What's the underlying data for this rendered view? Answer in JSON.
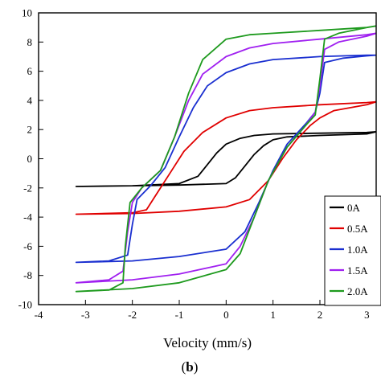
{
  "chart_data": {
    "type": "line",
    "xlabel": "Velocity (mm/s)",
    "ylabel": "",
    "xlim": [
      -4,
      3.2
    ],
    "ylim": [
      -10,
      10
    ],
    "xticks": [
      -4,
      -3,
      -2,
      -1,
      0,
      1,
      2,
      3
    ],
    "yticks": [
      -10,
      -8,
      -6,
      -4,
      -2,
      0,
      2,
      4,
      6,
      8,
      10
    ],
    "grid": false,
    "legend_position": "bottom-right",
    "caption": {
      "open": "(",
      "label": "b",
      "close": ")"
    },
    "series": [
      {
        "name": "0A",
        "color": "#000000",
        "upper": [
          [
            -3.2,
            -1.9
          ],
          [
            -2,
            -1.85
          ],
          [
            -1,
            -1.7
          ],
          [
            -0.6,
            -1.2
          ],
          [
            -0.4,
            -0.4
          ],
          [
            -0.2,
            0.4
          ],
          [
            0,
            1.0
          ],
          [
            0.3,
            1.4
          ],
          [
            0.6,
            1.6
          ],
          [
            1,
            1.7
          ],
          [
            2,
            1.75
          ],
          [
            3,
            1.8
          ],
          [
            3.2,
            1.85
          ]
        ],
        "lower": [
          [
            -3.2,
            -1.9
          ],
          [
            -2,
            -1.85
          ],
          [
            -1,
            -1.8
          ],
          [
            0,
            -1.7
          ],
          [
            0.2,
            -1.3
          ],
          [
            0.4,
            -0.5
          ],
          [
            0.6,
            0.3
          ],
          [
            0.8,
            0.9
          ],
          [
            1,
            1.3
          ],
          [
            1.3,
            1.5
          ],
          [
            2,
            1.6
          ],
          [
            3,
            1.7
          ],
          [
            3.2,
            1.85
          ]
        ]
      },
      {
        "name": "0.5A",
        "color": "#e00000",
        "upper": [
          [
            -3.2,
            -3.8
          ],
          [
            -2,
            -3.7
          ],
          [
            -1.7,
            -3.5
          ],
          [
            -1.5,
            -2.5
          ],
          [
            -1.2,
            -1.0
          ],
          [
            -0.9,
            0.5
          ],
          [
            -0.5,
            1.8
          ],
          [
            0,
            2.8
          ],
          [
            0.5,
            3.3
          ],
          [
            1,
            3.5
          ],
          [
            2,
            3.7
          ],
          [
            3,
            3.85
          ],
          [
            3.2,
            3.9
          ]
        ],
        "lower": [
          [
            -3.2,
            -3.8
          ],
          [
            -2,
            -3.75
          ],
          [
            -1,
            -3.6
          ],
          [
            0,
            -3.3
          ],
          [
            0.5,
            -2.8
          ],
          [
            0.9,
            -1.5
          ],
          [
            1.2,
            0
          ],
          [
            1.5,
            1.3
          ],
          [
            1.8,
            2.3
          ],
          [
            2,
            2.8
          ],
          [
            2.3,
            3.3
          ],
          [
            3,
            3.7
          ],
          [
            3.2,
            3.9
          ]
        ]
      },
      {
        "name": "1.0A",
        "color": "#1a2fd0",
        "upper": [
          [
            -3.2,
            -7.1
          ],
          [
            -2.5,
            -7.0
          ],
          [
            -2.1,
            -6.6
          ],
          [
            -2.0,
            -4.5
          ],
          [
            -1.9,
            -2.8
          ],
          [
            -1.6,
            -1.8
          ],
          [
            -1.3,
            -0.6
          ],
          [
            -1,
            1.5
          ],
          [
            -0.7,
            3.5
          ],
          [
            -0.4,
            5.0
          ],
          [
            0,
            5.9
          ],
          [
            0.5,
            6.5
          ],
          [
            1,
            6.8
          ],
          [
            2,
            7.0
          ],
          [
            3,
            7.1
          ],
          [
            3.2,
            7.1
          ]
        ],
        "lower": [
          [
            -3.2,
            -7.1
          ],
          [
            -2,
            -7.0
          ],
          [
            -1,
            -6.7
          ],
          [
            0,
            -6.2
          ],
          [
            0.4,
            -5.0
          ],
          [
            0.7,
            -3.0
          ],
          [
            1,
            -0.8
          ],
          [
            1.3,
            1.0
          ],
          [
            1.7,
            2.4
          ],
          [
            1.9,
            3.2
          ],
          [
            2.0,
            4.5
          ],
          [
            2.1,
            6.6
          ],
          [
            2.5,
            6.9
          ],
          [
            3,
            7.05
          ],
          [
            3.2,
            7.1
          ]
        ]
      },
      {
        "name": "1.5A",
        "color": "#a020f0",
        "upper": [
          [
            -3.2,
            -8.5
          ],
          [
            -2.5,
            -8.3
          ],
          [
            -2.2,
            -7.7
          ],
          [
            -2.1,
            -5.0
          ],
          [
            -2.0,
            -3.0
          ],
          [
            -1.8,
            -2.0
          ],
          [
            -1.4,
            -0.8
          ],
          [
            -1.1,
            1.5
          ],
          [
            -0.8,
            4.0
          ],
          [
            -0.5,
            5.8
          ],
          [
            0,
            7.0
          ],
          [
            0.5,
            7.6
          ],
          [
            1,
            7.9
          ],
          [
            2,
            8.2
          ],
          [
            3,
            8.5
          ],
          [
            3.2,
            8.6
          ]
        ],
        "lower": [
          [
            -3.2,
            -8.5
          ],
          [
            -2,
            -8.3
          ],
          [
            -1,
            -7.9
          ],
          [
            0,
            -7.2
          ],
          [
            0.3,
            -6.0
          ],
          [
            0.6,
            -4.0
          ],
          [
            0.9,
            -1.5
          ],
          [
            1.3,
            0.8
          ],
          [
            1.7,
            2.3
          ],
          [
            1.9,
            3.2
          ],
          [
            2.0,
            5.0
          ],
          [
            2.1,
            7.5
          ],
          [
            2.4,
            8.0
          ],
          [
            3,
            8.4
          ],
          [
            3.2,
            8.6
          ]
        ]
      },
      {
        "name": "2.0A",
        "color": "#1e9a1e",
        "upper": [
          [
            -3.2,
            -9.1
          ],
          [
            -2.5,
            -9.0
          ],
          [
            -2.2,
            -8.5
          ],
          [
            -2.15,
            -6.0
          ],
          [
            -2.05,
            -3.0
          ],
          [
            -1.8,
            -2.0
          ],
          [
            -1.4,
            -0.8
          ],
          [
            -1.1,
            1.5
          ],
          [
            -0.8,
            4.5
          ],
          [
            -0.5,
            6.8
          ],
          [
            0,
            8.2
          ],
          [
            0.5,
            8.5
          ],
          [
            1,
            8.6
          ],
          [
            2,
            8.8
          ],
          [
            3,
            9.0
          ],
          [
            3.2,
            9.1
          ]
        ],
        "lower": [
          [
            -3.2,
            -9.1
          ],
          [
            -2,
            -8.9
          ],
          [
            -1,
            -8.5
          ],
          [
            0,
            -7.6
          ],
          [
            0.3,
            -6.5
          ],
          [
            0.6,
            -4.0
          ],
          [
            0.9,
            -1.5
          ],
          [
            1.3,
            0.8
          ],
          [
            1.7,
            2.3
          ],
          [
            1.9,
            3.0
          ],
          [
            2.0,
            5.5
          ],
          [
            2.1,
            8.2
          ],
          [
            2.4,
            8.6
          ],
          [
            3,
            9.0
          ],
          [
            3.2,
            9.1
          ]
        ]
      }
    ]
  }
}
